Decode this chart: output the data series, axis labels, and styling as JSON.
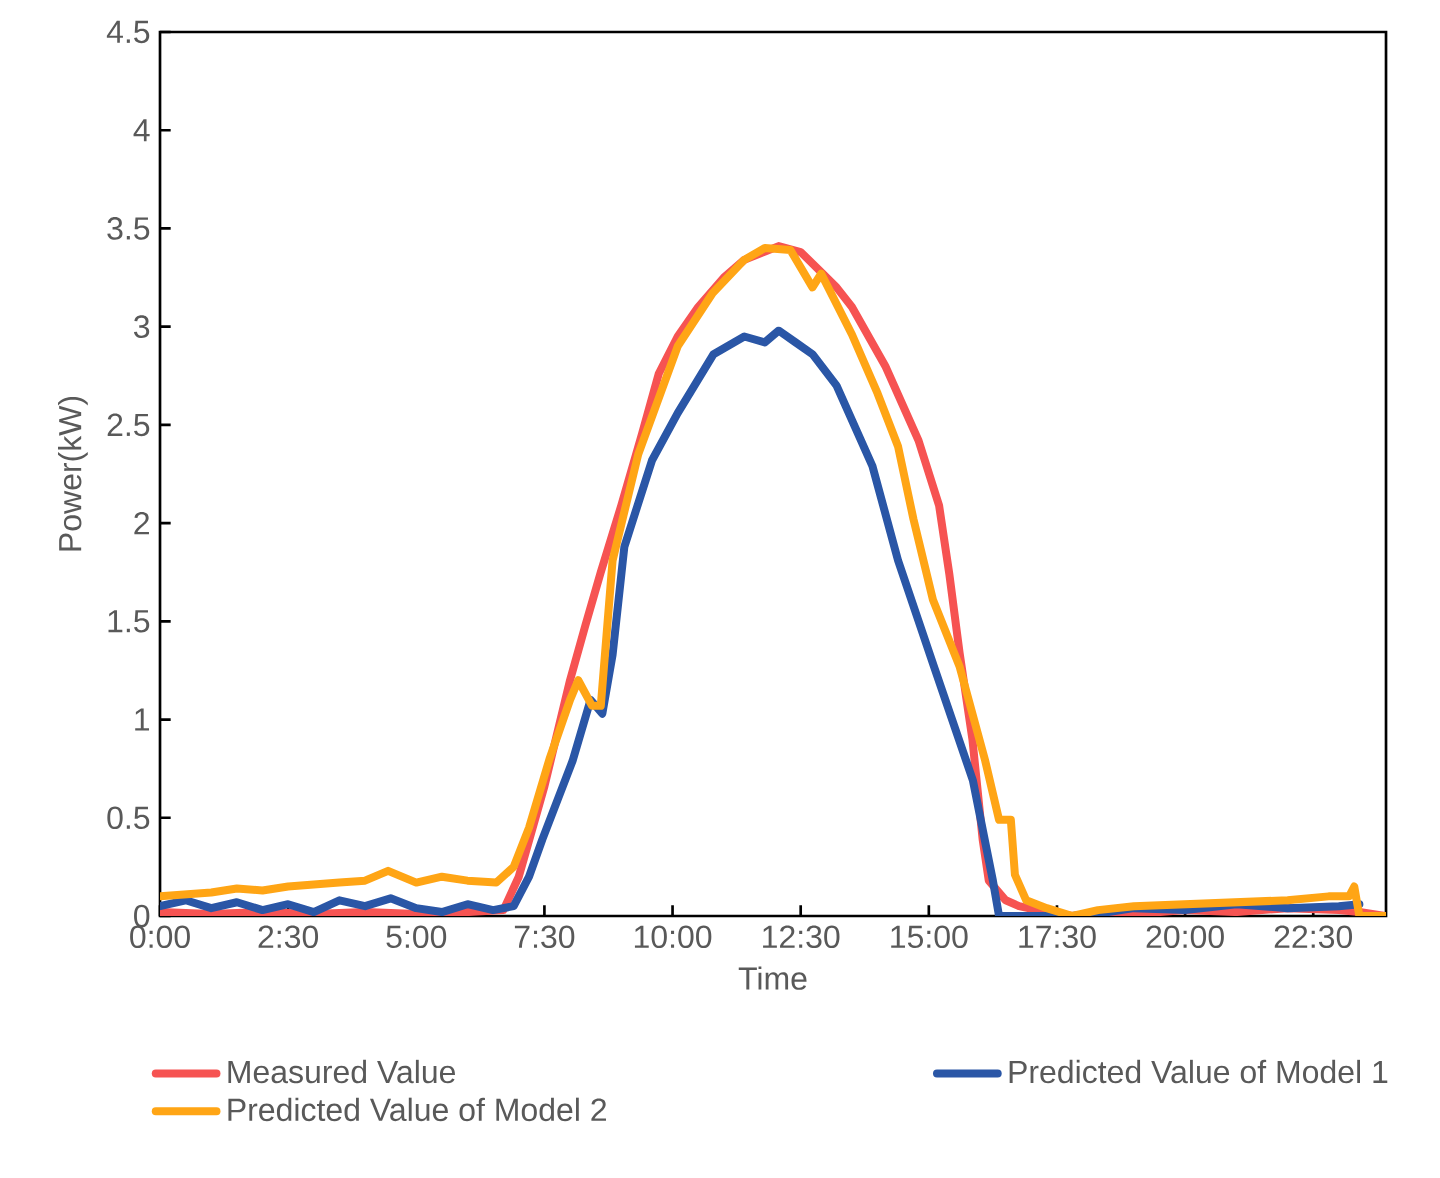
{
  "chart_data": {
    "type": "line",
    "xlabel": "Time",
    "ylabel": "Power(kW)",
    "xlim": [
      0,
      23.92
    ],
    "ylim": [
      0,
      4.5
    ],
    "xticks": [
      {
        "value": 0,
        "label": "0:00"
      },
      {
        "value": 2.5,
        "label": "2:30"
      },
      {
        "value": 5,
        "label": "5:00"
      },
      {
        "value": 7.5,
        "label": "7:30"
      },
      {
        "value": 10,
        "label": "10:00"
      },
      {
        "value": 12.5,
        "label": "12:30"
      },
      {
        "value": 15,
        "label": "15:00"
      },
      {
        "value": 17.5,
        "label": "17:30"
      },
      {
        "value": 20,
        "label": "20:00"
      },
      {
        "value": 22.5,
        "label": "22:30"
      }
    ],
    "yticks": [
      0,
      0.5,
      1,
      1.5,
      2,
      2.5,
      3,
      3.5,
      4,
      4.5
    ],
    "grid": false,
    "legend": "bottom",
    "marker": "none",
    "line_style": "solid",
    "series": [
      {
        "name": "Measured Value",
        "color": "#f65352",
        "x": [
          0,
          1,
          2,
          3,
          4,
          5,
          6,
          6.7,
          7.0,
          7.5,
          8.0,
          8.3,
          8.6,
          9.0,
          9.4,
          9.73,
          10.1,
          10.5,
          11.0,
          11.4,
          12.07,
          12.5,
          12.85,
          13.2,
          13.5,
          14.15,
          14.8,
          15.2,
          15.4,
          15.6,
          15.85,
          16.05,
          16.17,
          16.5,
          16.76,
          17.3,
          17.8,
          18.5,
          19,
          20,
          21,
          22,
          23,
          23.4,
          23.9
        ],
        "values": [
          0.02,
          0.01,
          0.02,
          0.01,
          0.02,
          0.01,
          0.02,
          0.03,
          0.2,
          0.66,
          1.2,
          1.48,
          1.75,
          2.09,
          2.45,
          2.76,
          2.95,
          3.1,
          3.25,
          3.34,
          3.41,
          3.38,
          3.29,
          3.2,
          3.1,
          2.8,
          2.42,
          2.09,
          1.74,
          1.34,
          0.9,
          0.39,
          0.18,
          0.08,
          0.05,
          0.02,
          0.0,
          0.02,
          0.01,
          0.03,
          0.02,
          0.04,
          0.03,
          0.02,
          0.0
        ]
      },
      {
        "name": "Predicted Value of Model 1",
        "color": "#2a56a6",
        "x": [
          0,
          0.5,
          1,
          1.5,
          2,
          2.5,
          3,
          3.5,
          4,
          4.5,
          5,
          5.5,
          6,
          6.5,
          6.9,
          7.2,
          7.46,
          8.05,
          8.4,
          8.63,
          8.83,
          9.06,
          9.6,
          10.1,
          10.8,
          11.4,
          11.8,
          12.07,
          12.4,
          12.73,
          13.2,
          13.9,
          14.4,
          15.1,
          15.86,
          16.25,
          16.37,
          17,
          17.8,
          18.5,
          19,
          20,
          21,
          22,
          23,
          23.4
        ],
        "values": [
          0.05,
          0.08,
          0.04,
          0.07,
          0.03,
          0.06,
          0.02,
          0.08,
          0.05,
          0.09,
          0.04,
          0.02,
          0.06,
          0.03,
          0.05,
          0.2,
          0.39,
          0.79,
          1.1,
          1.03,
          1.33,
          1.88,
          2.32,
          2.56,
          2.86,
          2.95,
          2.92,
          2.98,
          2.92,
          2.86,
          2.7,
          2.29,
          1.81,
          1.27,
          0.69,
          0.18,
          0.0,
          0.0,
          0.0,
          0.02,
          0.04,
          0.03,
          0.06,
          0.04,
          0.05,
          0.06
        ]
      },
      {
        "name": "Predicted Value of Model 2",
        "color": "#ffa515",
        "x": [
          0,
          0.5,
          1,
          1.5,
          2,
          2.5,
          3,
          3.5,
          4,
          4.45,
          5,
          5.5,
          6,
          6.56,
          6.9,
          7.2,
          7.6,
          8.0,
          8.16,
          8.43,
          8.6,
          8.83,
          9.33,
          10.1,
          10.78,
          11.4,
          11.8,
          12.3,
          12.73,
          12.9,
          13.5,
          14.0,
          14.4,
          14.7,
          15.08,
          15.6,
          16.1,
          16.37,
          16.6,
          16.68,
          16.9,
          17.3,
          17.8,
          18.3,
          19,
          20,
          21,
          22,
          22.8,
          23.2,
          23.3,
          23.4,
          23.9
        ],
        "values": [
          0.1,
          0.11,
          0.12,
          0.14,
          0.13,
          0.15,
          0.16,
          0.17,
          0.18,
          0.23,
          0.17,
          0.2,
          0.18,
          0.17,
          0.25,
          0.45,
          0.8,
          1.1,
          1.2,
          1.07,
          1.07,
          1.81,
          2.35,
          2.9,
          3.17,
          3.34,
          3.4,
          3.39,
          3.2,
          3.27,
          2.96,
          2.66,
          2.39,
          2.02,
          1.61,
          1.27,
          0.79,
          0.49,
          0.49,
          0.21,
          0.08,
          0.04,
          0.0,
          0.03,
          0.05,
          0.06,
          0.07,
          0.08,
          0.1,
          0.1,
          0.15,
          0.0,
          0.0
        ]
      }
    ]
  }
}
